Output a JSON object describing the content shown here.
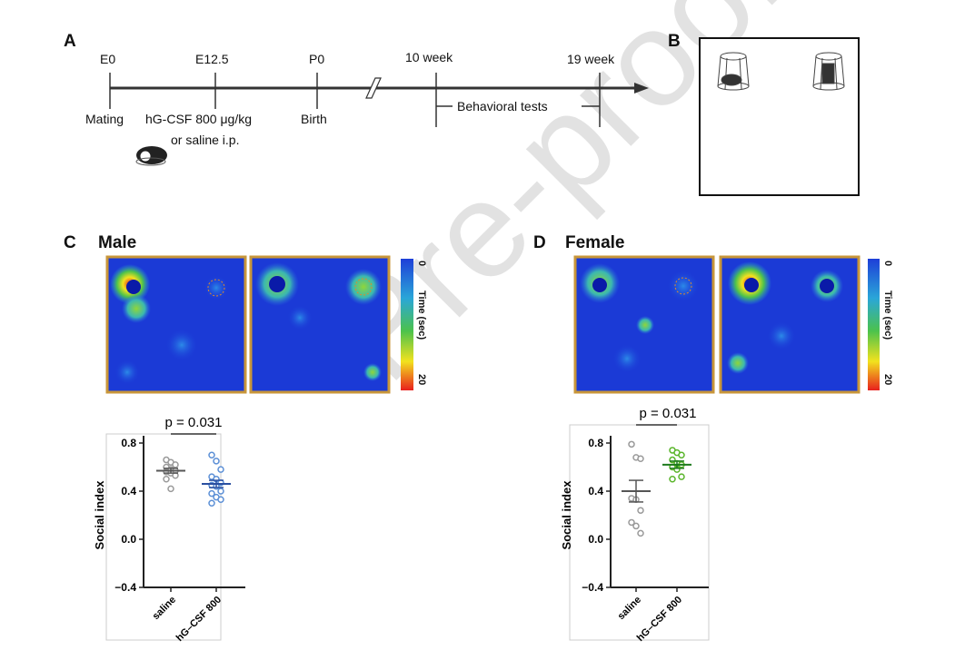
{
  "watermark": "Pre-proofs",
  "panels": {
    "a": {
      "label": "A",
      "timepoints": [
        "E0",
        "E12.5",
        "P0",
        "10 week",
        "19 week"
      ],
      "events": {
        "mating": "Mating",
        "injection_line1": "hG-CSF 800 μg/kg",
        "injection_line2": "or saline i.p.",
        "birth": "Birth",
        "tests": "Behavioral tests"
      }
    },
    "b": {
      "label": "B"
    },
    "c": {
      "label": "C",
      "title": "Male",
      "colorbar": {
        "min": "0",
        "max": "20",
        "title": "Time (sec)"
      }
    },
    "d": {
      "label": "D",
      "title": "Female",
      "colorbar": {
        "min": "0",
        "max": "20",
        "title": "Time (sec)"
      }
    }
  },
  "chart_data": [
    {
      "type": "scatter",
      "panel": "C",
      "ylabel": "Social index",
      "ylim": [
        -0.4,
        0.8
      ],
      "yticks": [
        "0.8",
        "0.4",
        "0.0",
        "−0.4"
      ],
      "categories": [
        "saline",
        "hG–CSF 800"
      ],
      "annotation": "p = 0.031",
      "series": [
        {
          "category": "saline",
          "color": "#9a9a9a",
          "mean": 0.57,
          "sem": 0.02,
          "values": [
            0.66,
            0.64,
            0.62,
            0.6,
            0.58,
            0.57,
            0.56,
            0.55,
            0.53,
            0.5,
            0.42
          ]
        },
        {
          "category": "hG–CSF 800",
          "color": "#5b8fd6",
          "mean_color": "#2a4fa0",
          "mean": 0.46,
          "sem": 0.03,
          "values": [
            0.7,
            0.65,
            0.58,
            0.52,
            0.5,
            0.47,
            0.45,
            0.44,
            0.4,
            0.38,
            0.35,
            0.33,
            0.3
          ]
        }
      ]
    },
    {
      "type": "scatter",
      "panel": "D",
      "ylabel": "Social index",
      "ylim": [
        -0.4,
        0.8
      ],
      "yticks": [
        "0.8",
        "0.4",
        "0.0",
        "−0.4"
      ],
      "categories": [
        "saline",
        "hG–CSF 800"
      ],
      "annotation": "p = 0.031",
      "series": [
        {
          "category": "saline",
          "color": "#9a9a9a",
          "mean": 0.4,
          "sem": 0.09,
          "values": [
            0.79,
            0.68,
            0.67,
            0.34,
            0.33,
            0.24,
            0.14,
            0.11,
            0.05
          ]
        },
        {
          "category": "hG–CSF 800",
          "color": "#5ab52a",
          "mean_color": "#1d7a1d",
          "mean": 0.62,
          "sem": 0.03,
          "values": [
            0.74,
            0.72,
            0.7,
            0.66,
            0.63,
            0.62,
            0.6,
            0.58,
            0.52,
            0.5
          ]
        }
      ]
    }
  ]
}
